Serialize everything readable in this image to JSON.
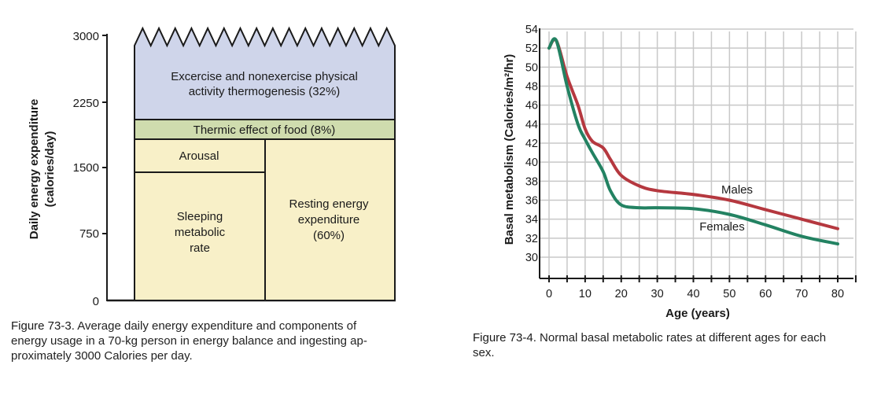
{
  "chart_data": [
    {
      "type": "stacked-bar",
      "ylabel_line1": "Daily energy expenditure",
      "ylabel_line2": "(calories/day)",
      "yticks": [
        "3000",
        "2250",
        "1500",
        "750",
        "0"
      ],
      "ylim": [
        0,
        3000
      ],
      "segments": [
        {
          "label_lines": [
            "Sleeping",
            "metabolic",
            "rate"
          ],
          "from": 0,
          "to": 1450,
          "column": "left"
        },
        {
          "label_lines": [
            "Arousal"
          ],
          "from": 1450,
          "to": 1800,
          "column": "left"
        },
        {
          "label_lines": [
            "Resting energy",
            "expenditure",
            "(60%)"
          ],
          "from": 0,
          "to": 1800,
          "column": "right"
        },
        {
          "label_lines": [
            "Thermic effect of food (8%)"
          ],
          "from": 1800,
          "to": 2040,
          "column": "full"
        },
        {
          "label_lines": [
            "Excercise and nonexercise physical",
            "activity thermogenesis (32%)"
          ],
          "from": 2040,
          "to": 3000,
          "column": "full"
        }
      ],
      "colors": {
        "light_yellow": "#f8f0c8",
        "light_green": "#cfdcae",
        "light_blue": "#cfd5ea"
      },
      "caption_label": "Figure 73-3.",
      "caption_text_lines": [
        "Average daily energy expenditure and components of",
        "energy usage in a 70-kg person in energy balance and ingesting ap-",
        "proximately 3000 Calories per day."
      ]
    },
    {
      "type": "line",
      "ylabel": "Basal metabolism (Calories/m²/hr)",
      "xlabel": "Age (years)",
      "xticks": [
        "0",
        "10",
        "20",
        "30",
        "40",
        "50",
        "60",
        "70",
        "80"
      ],
      "yticks": [
        "30",
        "32",
        "34",
        "36",
        "38",
        "40",
        "42",
        "44",
        "46",
        "48",
        "50",
        "52",
        "54"
      ],
      "xlim": [
        0,
        82
      ],
      "ylim": [
        30,
        54
      ],
      "grid": true,
      "series": [
        {
          "name": "Males",
          "color": "#b5383f",
          "x": [
            0,
            2,
            5,
            8,
            10,
            12,
            15,
            17,
            20,
            25,
            30,
            40,
            50,
            60,
            70,
            80
          ],
          "y": [
            52,
            52.8,
            49,
            46,
            43.5,
            42.2,
            41.5,
            40.3,
            38.6,
            37.5,
            37,
            36.6,
            36,
            35,
            34,
            33
          ]
        },
        {
          "name": "Females",
          "color": "#238262",
          "x": [
            0,
            2,
            5,
            8,
            10,
            12,
            15,
            17,
            20,
            25,
            30,
            40,
            50,
            60,
            70,
            80
          ],
          "y": [
            52,
            52.8,
            48,
            44,
            42.4,
            41,
            39,
            37,
            35.5,
            35.2,
            35.2,
            35.1,
            34.5,
            33.4,
            32.2,
            31.4
          ]
        }
      ],
      "caption_label": "Figure 73-4.",
      "caption_text_lines": [
        "Normal basal metabolic rates at different ages for each",
        "sex."
      ]
    }
  ]
}
